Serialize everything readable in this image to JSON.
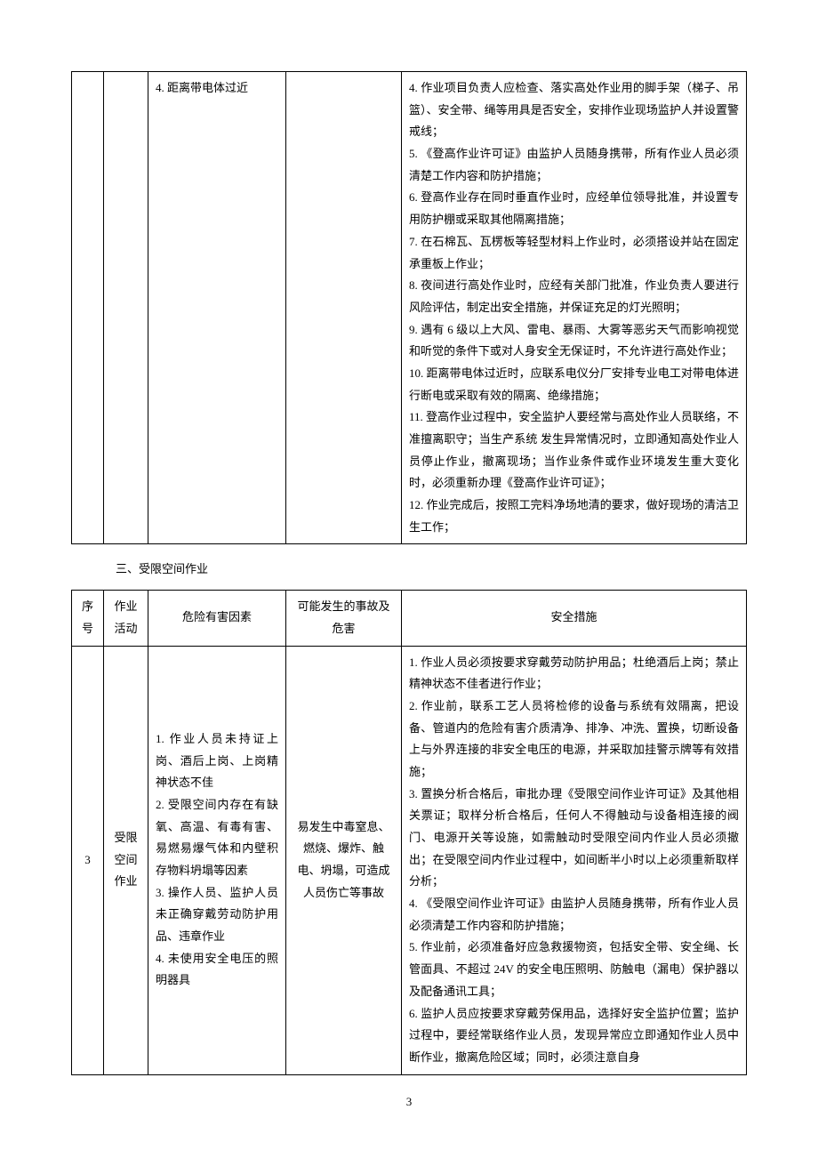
{
  "table1": {
    "row": {
      "hazards": "4. 距离带电体过近",
      "measures": [
        "4. 作业项目负责人应检查、落实高处作业用的脚手架（梯子、吊篮）、安全带、绳等用具是否安全，安排作业现场监护人并设置警戒线；",
        "5. 《登高作业许可证》由监护人员随身携带，所有作业人员必须清楚工作内容和防护措施；",
        "6. 登高作业存在同时垂直作业时，应经单位领导批准，并设置专用防护棚或采取其他隔离措施；",
        "7. 在石棉瓦、瓦楞板等轻型材料上作业时，必须搭设并站在固定承重板上作业；",
        "8. 夜间进行高处作业时，应经有关部门批准，作业负责人要进行风险评估，制定出安全措施，并保证充足的灯光照明；",
        "9. 遇有 6 级以上大风、雷电、暴雨、大雾等恶劣天气而影响视觉和听觉的条件下或对人身安全无保证时，不允许进行高处作业；",
        "10. 距离带电体过近时，应联系电仪分厂安排专业电工对带电体进行断电或采取有效的隔离、绝缘措施；",
        "11. 登高作业过程中，安全监护人要经常与高处作业人员联络，不准擅离职守；当生产系统 发生异常情况时，立即通知高处作业人员停止作业，撤离现场；当作业条件或作业环境发生重大变化时，必须重新办理《登高作业许可证》；",
        "12. 作业完成后，按照工完料净场地清的要求，做好现场的清洁卫生工作；"
      ]
    }
  },
  "section2_heading": "三、受限空间作业",
  "table2": {
    "headers": {
      "seq": "序号",
      "activity": "作业活动",
      "hazard": "危险有害因素",
      "accident": "可能发生的事故及危害",
      "measure": "安全措施"
    },
    "row": {
      "seq": "3",
      "activity": "受限空间作业",
      "hazards": [
        "1. 作业人员未持证上岗、酒后上岗、上岗精神状态不佳",
        "2. 受限空间内存在有缺氧、高温、有毒有害、易燃易爆气体和内壁积存物料坍塌等因素",
        "3. 操作人员、监护人员未正确穿戴劳动防护用品、违章作业",
        "4. 未使用安全电压的照明器具"
      ],
      "accident": "易发生中毒窒息、燃烧、爆炸、触电、坍塌，可造成人员伤亡等事故",
      "measures": [
        "1. 作业人员必须按要求穿戴劳动防护用品；杜绝酒后上岗；禁止精神状态不佳者进行作业；",
        "2. 作业前，联系工艺人员将检修的设备与系统有效隔离，把设备、管道内的危险有害介质清净、排净、冲洗、置换，切断设备上与外界连接的非安全电压的电源，并采取加挂警示牌等有效措施；",
        "3. 置换分析合格后，审批办理《受限空间作业许可证》及其他相关票证；取样分析合格后，任何人不得触动与设备相连接的阀门、电源开关等设施，如需触动时受限空间内作业人员必须撤出；在受限空间内作业过程中，如间断半小时以上必须重新取样分析；",
        "4. 《受限空间作业许可证》由监护人员随身携带，所有作业人员必须清楚工作内容和防护措施；",
        "5. 作业前，必须准备好应急救援物资，包括安全带、安全绳、长管面具、不超过 24V 的安全电压照明、防触电（漏电）保护器以及配备通讯工具；",
        "6. 监护人员应按要求穿戴劳保用品，选择好安全监护位置；监护过程中，要经常联络作业人员，发现异常应立即通知作业人员中断作业，撤离危险区域；同时，必须注意自身"
      ]
    }
  },
  "page_number": "3"
}
